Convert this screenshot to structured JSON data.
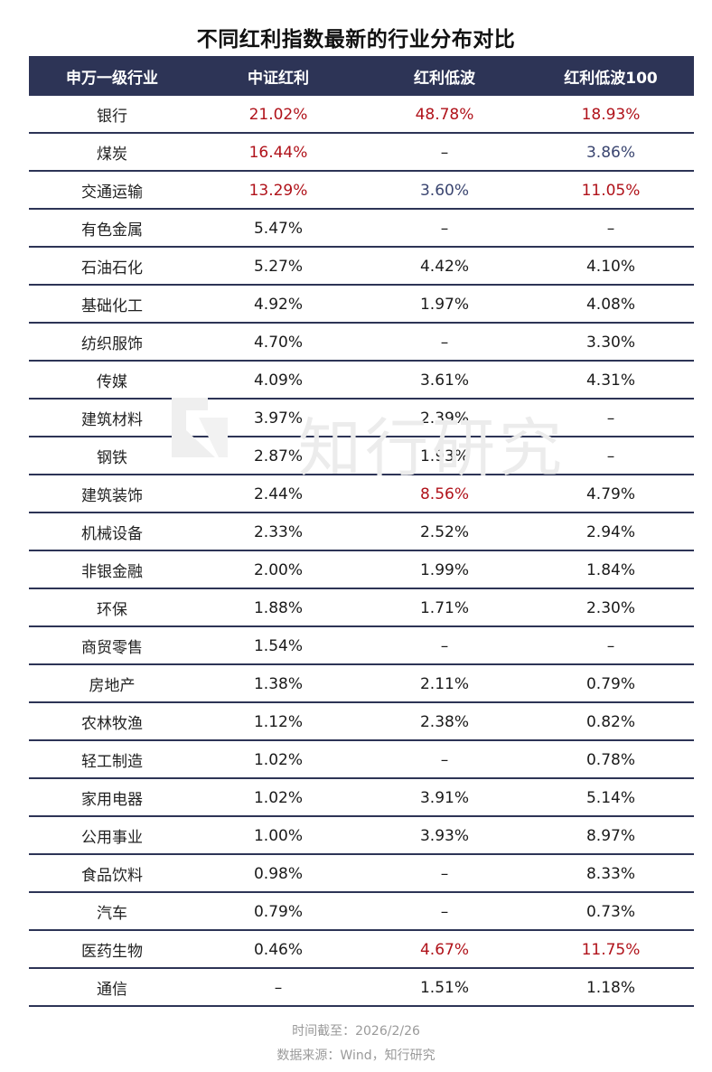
{
  "title": "不同红利指数最新的行业分布对比",
  "colors": {
    "header_bg": "#2d3456",
    "highlight_red": "#b0121a",
    "highlight_blue": "#3a4570"
  },
  "table": {
    "headers": [
      "申万一级行业",
      "中证红利",
      "红利低波",
      "红利低波100"
    ],
    "rows": [
      {
        "industry": "银行",
        "values": [
          {
            "v": "21.02%",
            "c": "red"
          },
          {
            "v": "48.78%",
            "c": "red"
          },
          {
            "v": "18.93%",
            "c": "red"
          }
        ]
      },
      {
        "industry": "煤炭",
        "values": [
          {
            "v": "16.44%",
            "c": "red"
          },
          {
            "v": "–",
            "c": "norm"
          },
          {
            "v": "3.86%",
            "c": "blue"
          }
        ]
      },
      {
        "industry": "交通运输",
        "values": [
          {
            "v": "13.29%",
            "c": "red"
          },
          {
            "v": "3.60%",
            "c": "blue"
          },
          {
            "v": "11.05%",
            "c": "red"
          }
        ]
      },
      {
        "industry": "有色金属",
        "values": [
          {
            "v": "5.47%",
            "c": "norm"
          },
          {
            "v": "–",
            "c": "norm"
          },
          {
            "v": "–",
            "c": "norm"
          }
        ]
      },
      {
        "industry": "石油石化",
        "values": [
          {
            "v": "5.27%",
            "c": "norm"
          },
          {
            "v": "4.42%",
            "c": "norm"
          },
          {
            "v": "4.10%",
            "c": "norm"
          }
        ]
      },
      {
        "industry": "基础化工",
        "values": [
          {
            "v": "4.92%",
            "c": "norm"
          },
          {
            "v": "1.97%",
            "c": "norm"
          },
          {
            "v": "4.08%",
            "c": "norm"
          }
        ]
      },
      {
        "industry": "纺织服饰",
        "values": [
          {
            "v": "4.70%",
            "c": "norm"
          },
          {
            "v": "–",
            "c": "norm"
          },
          {
            "v": "3.30%",
            "c": "norm"
          }
        ]
      },
      {
        "industry": "传媒",
        "values": [
          {
            "v": "4.09%",
            "c": "norm"
          },
          {
            "v": "3.61%",
            "c": "norm"
          },
          {
            "v": "4.31%",
            "c": "norm"
          }
        ]
      },
      {
        "industry": "建筑材料",
        "values": [
          {
            "v": "3.97%",
            "c": "norm"
          },
          {
            "v": "2.39%",
            "c": "norm"
          },
          {
            "v": "–",
            "c": "norm"
          }
        ]
      },
      {
        "industry": "钢铁",
        "values": [
          {
            "v": "2.87%",
            "c": "norm"
          },
          {
            "v": "1.93%",
            "c": "norm"
          },
          {
            "v": "–",
            "c": "norm"
          }
        ]
      },
      {
        "industry": "建筑装饰",
        "values": [
          {
            "v": "2.44%",
            "c": "norm"
          },
          {
            "v": "8.56%",
            "c": "red"
          },
          {
            "v": "4.79%",
            "c": "norm"
          }
        ]
      },
      {
        "industry": "机械设备",
        "values": [
          {
            "v": "2.33%",
            "c": "norm"
          },
          {
            "v": "2.52%",
            "c": "norm"
          },
          {
            "v": "2.94%",
            "c": "norm"
          }
        ]
      },
      {
        "industry": "非银金融",
        "values": [
          {
            "v": "2.00%",
            "c": "norm"
          },
          {
            "v": "1.99%",
            "c": "norm"
          },
          {
            "v": "1.84%",
            "c": "norm"
          }
        ]
      },
      {
        "industry": "环保",
        "values": [
          {
            "v": "1.88%",
            "c": "norm"
          },
          {
            "v": "1.71%",
            "c": "norm"
          },
          {
            "v": "2.30%",
            "c": "norm"
          }
        ]
      },
      {
        "industry": "商贸零售",
        "values": [
          {
            "v": "1.54%",
            "c": "norm"
          },
          {
            "v": "–",
            "c": "norm"
          },
          {
            "v": "–",
            "c": "norm"
          }
        ]
      },
      {
        "industry": "房地产",
        "values": [
          {
            "v": "1.38%",
            "c": "norm"
          },
          {
            "v": "2.11%",
            "c": "norm"
          },
          {
            "v": "0.79%",
            "c": "norm"
          }
        ]
      },
      {
        "industry": "农林牧渔",
        "values": [
          {
            "v": "1.12%",
            "c": "norm"
          },
          {
            "v": "2.38%",
            "c": "norm"
          },
          {
            "v": "0.82%",
            "c": "norm"
          }
        ]
      },
      {
        "industry": "轻工制造",
        "values": [
          {
            "v": "1.02%",
            "c": "norm"
          },
          {
            "v": "–",
            "c": "norm"
          },
          {
            "v": "0.78%",
            "c": "norm"
          }
        ]
      },
      {
        "industry": "家用电器",
        "values": [
          {
            "v": "1.02%",
            "c": "norm"
          },
          {
            "v": "3.91%",
            "c": "norm"
          },
          {
            "v": "5.14%",
            "c": "norm"
          }
        ]
      },
      {
        "industry": "公用事业",
        "values": [
          {
            "v": "1.00%",
            "c": "norm"
          },
          {
            "v": "3.93%",
            "c": "norm"
          },
          {
            "v": "8.97%",
            "c": "norm"
          }
        ]
      },
      {
        "industry": "食品饮料",
        "values": [
          {
            "v": "0.98%",
            "c": "norm"
          },
          {
            "v": "–",
            "c": "norm"
          },
          {
            "v": "8.33%",
            "c": "norm"
          }
        ]
      },
      {
        "industry": "汽车",
        "values": [
          {
            "v": "0.79%",
            "c": "norm"
          },
          {
            "v": "–",
            "c": "norm"
          },
          {
            "v": "0.73%",
            "c": "norm"
          }
        ]
      },
      {
        "industry": "医药生物",
        "values": [
          {
            "v": "0.46%",
            "c": "norm"
          },
          {
            "v": "4.67%",
            "c": "red"
          },
          {
            "v": "11.75%",
            "c": "red"
          }
        ]
      },
      {
        "industry": "通信",
        "values": [
          {
            "v": "–",
            "c": "norm"
          },
          {
            "v": "1.51%",
            "c": "norm"
          },
          {
            "v": "1.18%",
            "c": "norm"
          }
        ]
      }
    ]
  },
  "watermark": {
    "text": "知行研究",
    "icon": "brand-logo-icon"
  },
  "footer": {
    "time": "时间截至：2026/2/26",
    "source": "数据来源：Wind，知行研究"
  }
}
